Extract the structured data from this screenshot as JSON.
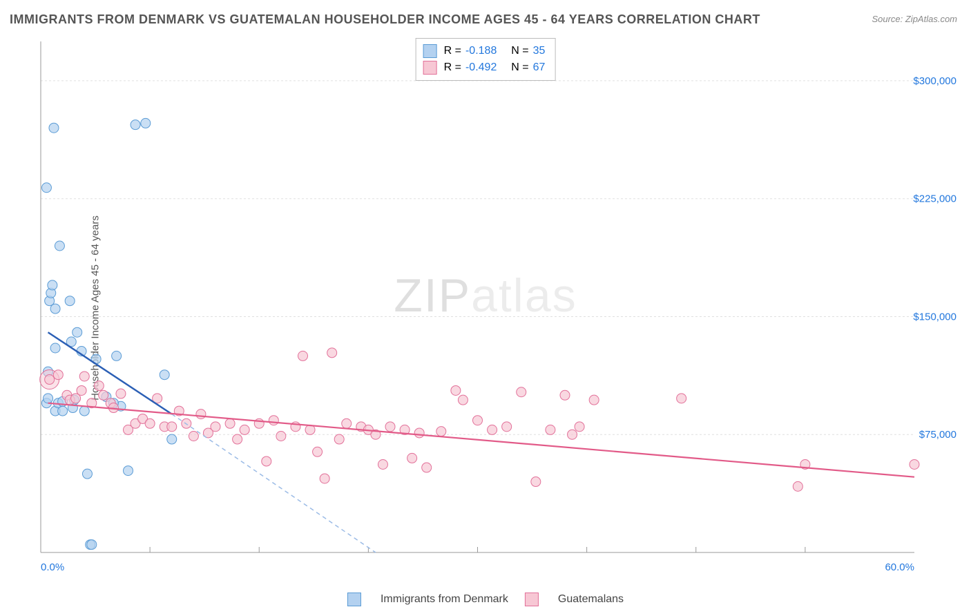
{
  "title": "IMMIGRANTS FROM DENMARK VS GUATEMALAN HOUSEHOLDER INCOME AGES 45 - 64 YEARS CORRELATION CHART",
  "source": "Source: ZipAtlas.com",
  "watermark": "ZIPatlas",
  "y_axis_label": "Householder Income Ages 45 - 64 years",
  "chart": {
    "type": "scatter",
    "xlim": [
      0.0,
      60.0
    ],
    "ylim": [
      0,
      325000
    ],
    "x_ticks": [
      0.0,
      60.0
    ],
    "x_tick_labels": [
      "0.0%",
      "60.0%"
    ],
    "x_minor_ticks": [
      7.5,
      15,
      22.5,
      30,
      37.5,
      45,
      52.5
    ],
    "y_ticks": [
      75000,
      150000,
      225000,
      300000
    ],
    "y_tick_labels": [
      "$75,000",
      "$150,000",
      "$225,000",
      "$300,000"
    ],
    "grid_color": "#e0e0e0",
    "axis_color": "#999999",
    "background_color": "#ffffff",
    "tick_label_color": "#2277dd",
    "tick_label_fontsize": 15
  },
  "series": [
    {
      "name": "Immigrants from Denmark",
      "marker_fill": "#b3d1f0",
      "marker_stroke": "#5a9bd5",
      "marker_radius": 7,
      "marker_opacity": 0.7,
      "line_color": "#2b5fb5",
      "line_width": 2.5,
      "dash_color": "#9bbbe6",
      "regression": {
        "x1": 0.5,
        "y1": 140000,
        "x2": 9,
        "y2": 88000,
        "dash_to_x": 23,
        "dash_to_y": 0
      },
      "points": [
        [
          0.4,
          232000
        ],
        [
          0.4,
          95000
        ],
        [
          0.5,
          115000
        ],
        [
          0.5,
          98000
        ],
        [
          0.6,
          160000
        ],
        [
          0.7,
          165000
        ],
        [
          0.8,
          170000
        ],
        [
          0.9,
          270000
        ],
        [
          1.0,
          155000
        ],
        [
          1.0,
          130000
        ],
        [
          1.0,
          90000
        ],
        [
          1.2,
          95000
        ],
        [
          1.3,
          195000
        ],
        [
          1.5,
          90000
        ],
        [
          1.5,
          96000
        ],
        [
          2.0,
          160000
        ],
        [
          2.1,
          134000
        ],
        [
          2.2,
          92000
        ],
        [
          2.3,
          97000
        ],
        [
          2.5,
          140000
        ],
        [
          2.8,
          128000
        ],
        [
          3.0,
          90000
        ],
        [
          3.2,
          50000
        ],
        [
          3.4,
          5000
        ],
        [
          3.5,
          5000
        ],
        [
          3.8,
          123000
        ],
        [
          4.5,
          99000
        ],
        [
          5.2,
          125000
        ],
        [
          5.5,
          93000
        ],
        [
          6.0,
          52000
        ],
        [
          6.5,
          272000
        ],
        [
          7.2,
          273000
        ],
        [
          8.5,
          113000
        ],
        [
          9.0,
          72000
        ],
        [
          5.0,
          95000
        ]
      ]
    },
    {
      "name": "Guatemalans",
      "marker_fill": "#f7c7d4",
      "marker_stroke": "#e27099",
      "marker_radius": 7,
      "marker_opacity": 0.7,
      "line_color": "#e25a88",
      "line_width": 2.2,
      "regression": {
        "x1": 0.5,
        "y1": 95000,
        "x2": 60,
        "y2": 48000
      },
      "big_point": {
        "x": 0.6,
        "y": 110000,
        "r": 14
      },
      "points": [
        [
          0.6,
          110000
        ],
        [
          1.2,
          113000
        ],
        [
          1.8,
          100000
        ],
        [
          2.0,
          97000
        ],
        [
          2.4,
          98000
        ],
        [
          2.8,
          103000
        ],
        [
          3.0,
          112000
        ],
        [
          3.5,
          95000
        ],
        [
          4.0,
          106000
        ],
        [
          4.3,
          100000
        ],
        [
          4.8,
          95000
        ],
        [
          5.0,
          92000
        ],
        [
          5.5,
          101000
        ],
        [
          6.0,
          78000
        ],
        [
          6.5,
          82000
        ],
        [
          7.0,
          85000
        ],
        [
          7.5,
          82000
        ],
        [
          8.0,
          98000
        ],
        [
          8.5,
          80000
        ],
        [
          9.0,
          80000
        ],
        [
          9.5,
          90000
        ],
        [
          10.0,
          82000
        ],
        [
          10.5,
          74000
        ],
        [
          11.0,
          88000
        ],
        [
          11.5,
          76000
        ],
        [
          12.0,
          80000
        ],
        [
          13.0,
          82000
        ],
        [
          13.5,
          72000
        ],
        [
          14.0,
          78000
        ],
        [
          15.0,
          82000
        ],
        [
          15.5,
          58000
        ],
        [
          16.0,
          84000
        ],
        [
          16.5,
          74000
        ],
        [
          17.5,
          80000
        ],
        [
          18.0,
          125000
        ],
        [
          18.5,
          78000
        ],
        [
          19.0,
          64000
        ],
        [
          19.5,
          47000
        ],
        [
          20.0,
          127000
        ],
        [
          20.5,
          72000
        ],
        [
          21.0,
          82000
        ],
        [
          22.0,
          80000
        ],
        [
          22.5,
          78000
        ],
        [
          23.0,
          75000
        ],
        [
          23.5,
          56000
        ],
        [
          24.0,
          80000
        ],
        [
          25.0,
          78000
        ],
        [
          25.5,
          60000
        ],
        [
          26.0,
          76000
        ],
        [
          26.5,
          54000
        ],
        [
          27.5,
          77000
        ],
        [
          28.5,
          103000
        ],
        [
          29.0,
          97000
        ],
        [
          30.0,
          84000
        ],
        [
          31.0,
          78000
        ],
        [
          32.0,
          80000
        ],
        [
          33.0,
          102000
        ],
        [
          34.0,
          45000
        ],
        [
          35.0,
          78000
        ],
        [
          36.0,
          100000
        ],
        [
          36.5,
          75000
        ],
        [
          37.0,
          80000
        ],
        [
          38.0,
          97000
        ],
        [
          44.0,
          98000
        ],
        [
          52.0,
          42000
        ],
        [
          52.5,
          56000
        ],
        [
          60.0,
          56000
        ]
      ]
    }
  ],
  "stats": [
    {
      "swatch_fill": "#b3d1f0",
      "swatch_stroke": "#5a9bd5",
      "r_label": "R =",
      "r": "-0.188",
      "n_label": "N =",
      "n": "35"
    },
    {
      "swatch_fill": "#f7c7d4",
      "swatch_stroke": "#e27099",
      "r_label": "R =",
      "r": "-0.492",
      "n_label": "N =",
      "n": "67"
    }
  ],
  "legend_bottom": [
    {
      "swatch_fill": "#b3d1f0",
      "swatch_stroke": "#5a9bd5",
      "label": "Immigrants from Denmark"
    },
    {
      "swatch_fill": "#f7c7d4",
      "swatch_stroke": "#e27099",
      "label": "Guatemalans"
    }
  ]
}
